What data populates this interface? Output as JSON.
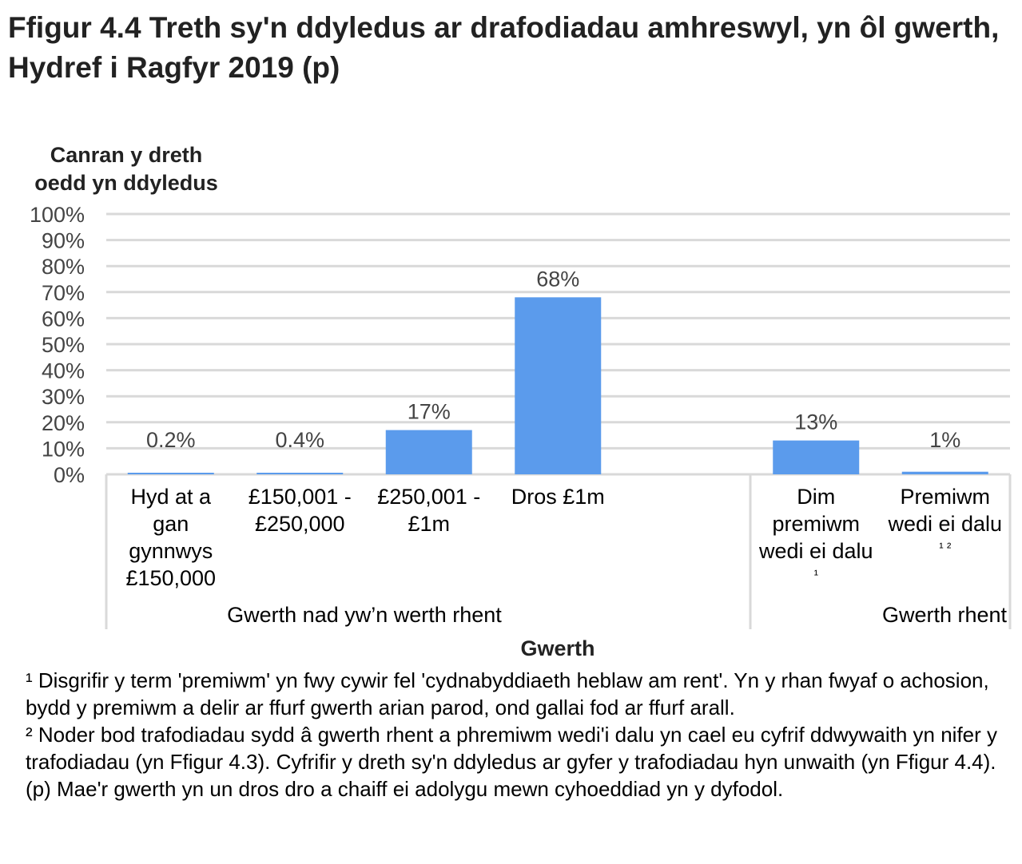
{
  "title": "Ffigur 4.4  Treth sy'n ddyledus ar drafodiadau amhreswyl, yn ôl gwerth, Hydref i Ragfyr 2019 (p)",
  "chart_data": {
    "type": "bar",
    "title": "Ffigur 4.4  Treth sy'n ddyledus ar drafodiadau amhreswyl, yn ôl gwerth, Hydref i Ragfyr 2019 (p)",
    "ylabel": [
      "Canran y dreth",
      "oedd yn ddyledus"
    ],
    "xlabel": "Gwerth",
    "ylim": [
      0,
      100
    ],
    "yticks": [
      "0%",
      "10%",
      "20%",
      "30%",
      "40%",
      "50%",
      "60%",
      "70%",
      "80%",
      "90%",
      "100%"
    ],
    "grid": true,
    "color": "#5b9bec",
    "groups": [
      {
        "label": "Gwerth nad yw’n werth rhent",
        "categories": [
          {
            "label": [
              "Hyd at a",
              "gan",
              "gynnwys",
              "£150,000"
            ],
            "value": 0.2,
            "data_label": "0.2%"
          },
          {
            "label": [
              "£150,001 -",
              "£250,000"
            ],
            "value": 0.4,
            "data_label": "0.4%"
          },
          {
            "label": [
              "£250,001 -",
              "£1m"
            ],
            "value": 17,
            "data_label": "17%"
          },
          {
            "label": [
              "Dros £1m"
            ],
            "value": 68,
            "data_label": "68%"
          }
        ]
      },
      {
        "label": "Gwerth rhent",
        "categories": [
          {
            "label": [
              "Dim",
              "premiwm",
              "wedi ei dalu",
              "¹"
            ],
            "value": 13,
            "data_label": "13%"
          },
          {
            "label": [
              "Premiwm",
              "wedi ei dalu",
              "¹ ²"
            ],
            "value": 1,
            "data_label": "1%"
          }
        ]
      }
    ]
  },
  "notes": [
    "¹ Disgrifir y term 'premiwm' yn fwy cywir fel 'cydnabyddiaeth heblaw am rent'. Yn y rhan fwyaf o achosion, bydd y premiwm a delir ar ffurf gwerth arian parod, ond gallai fod ar ffurf arall.",
    "² Noder bod trafodiadau sydd â gwerth rhent a phremiwm wedi'i dalu yn cael eu cyfrif ddwywaith yn nifer y trafodiadau (yn Ffigur 4.3). Cyfrifir y dreth sy'n ddyledus ar gyfer y trafodiadau hyn unwaith (yn Ffigur 4.4).",
    "(p) Mae'r gwerth yn un dros dro a chaiff ei adolygu mewn cyhoeddiad yn y dyfodol."
  ]
}
